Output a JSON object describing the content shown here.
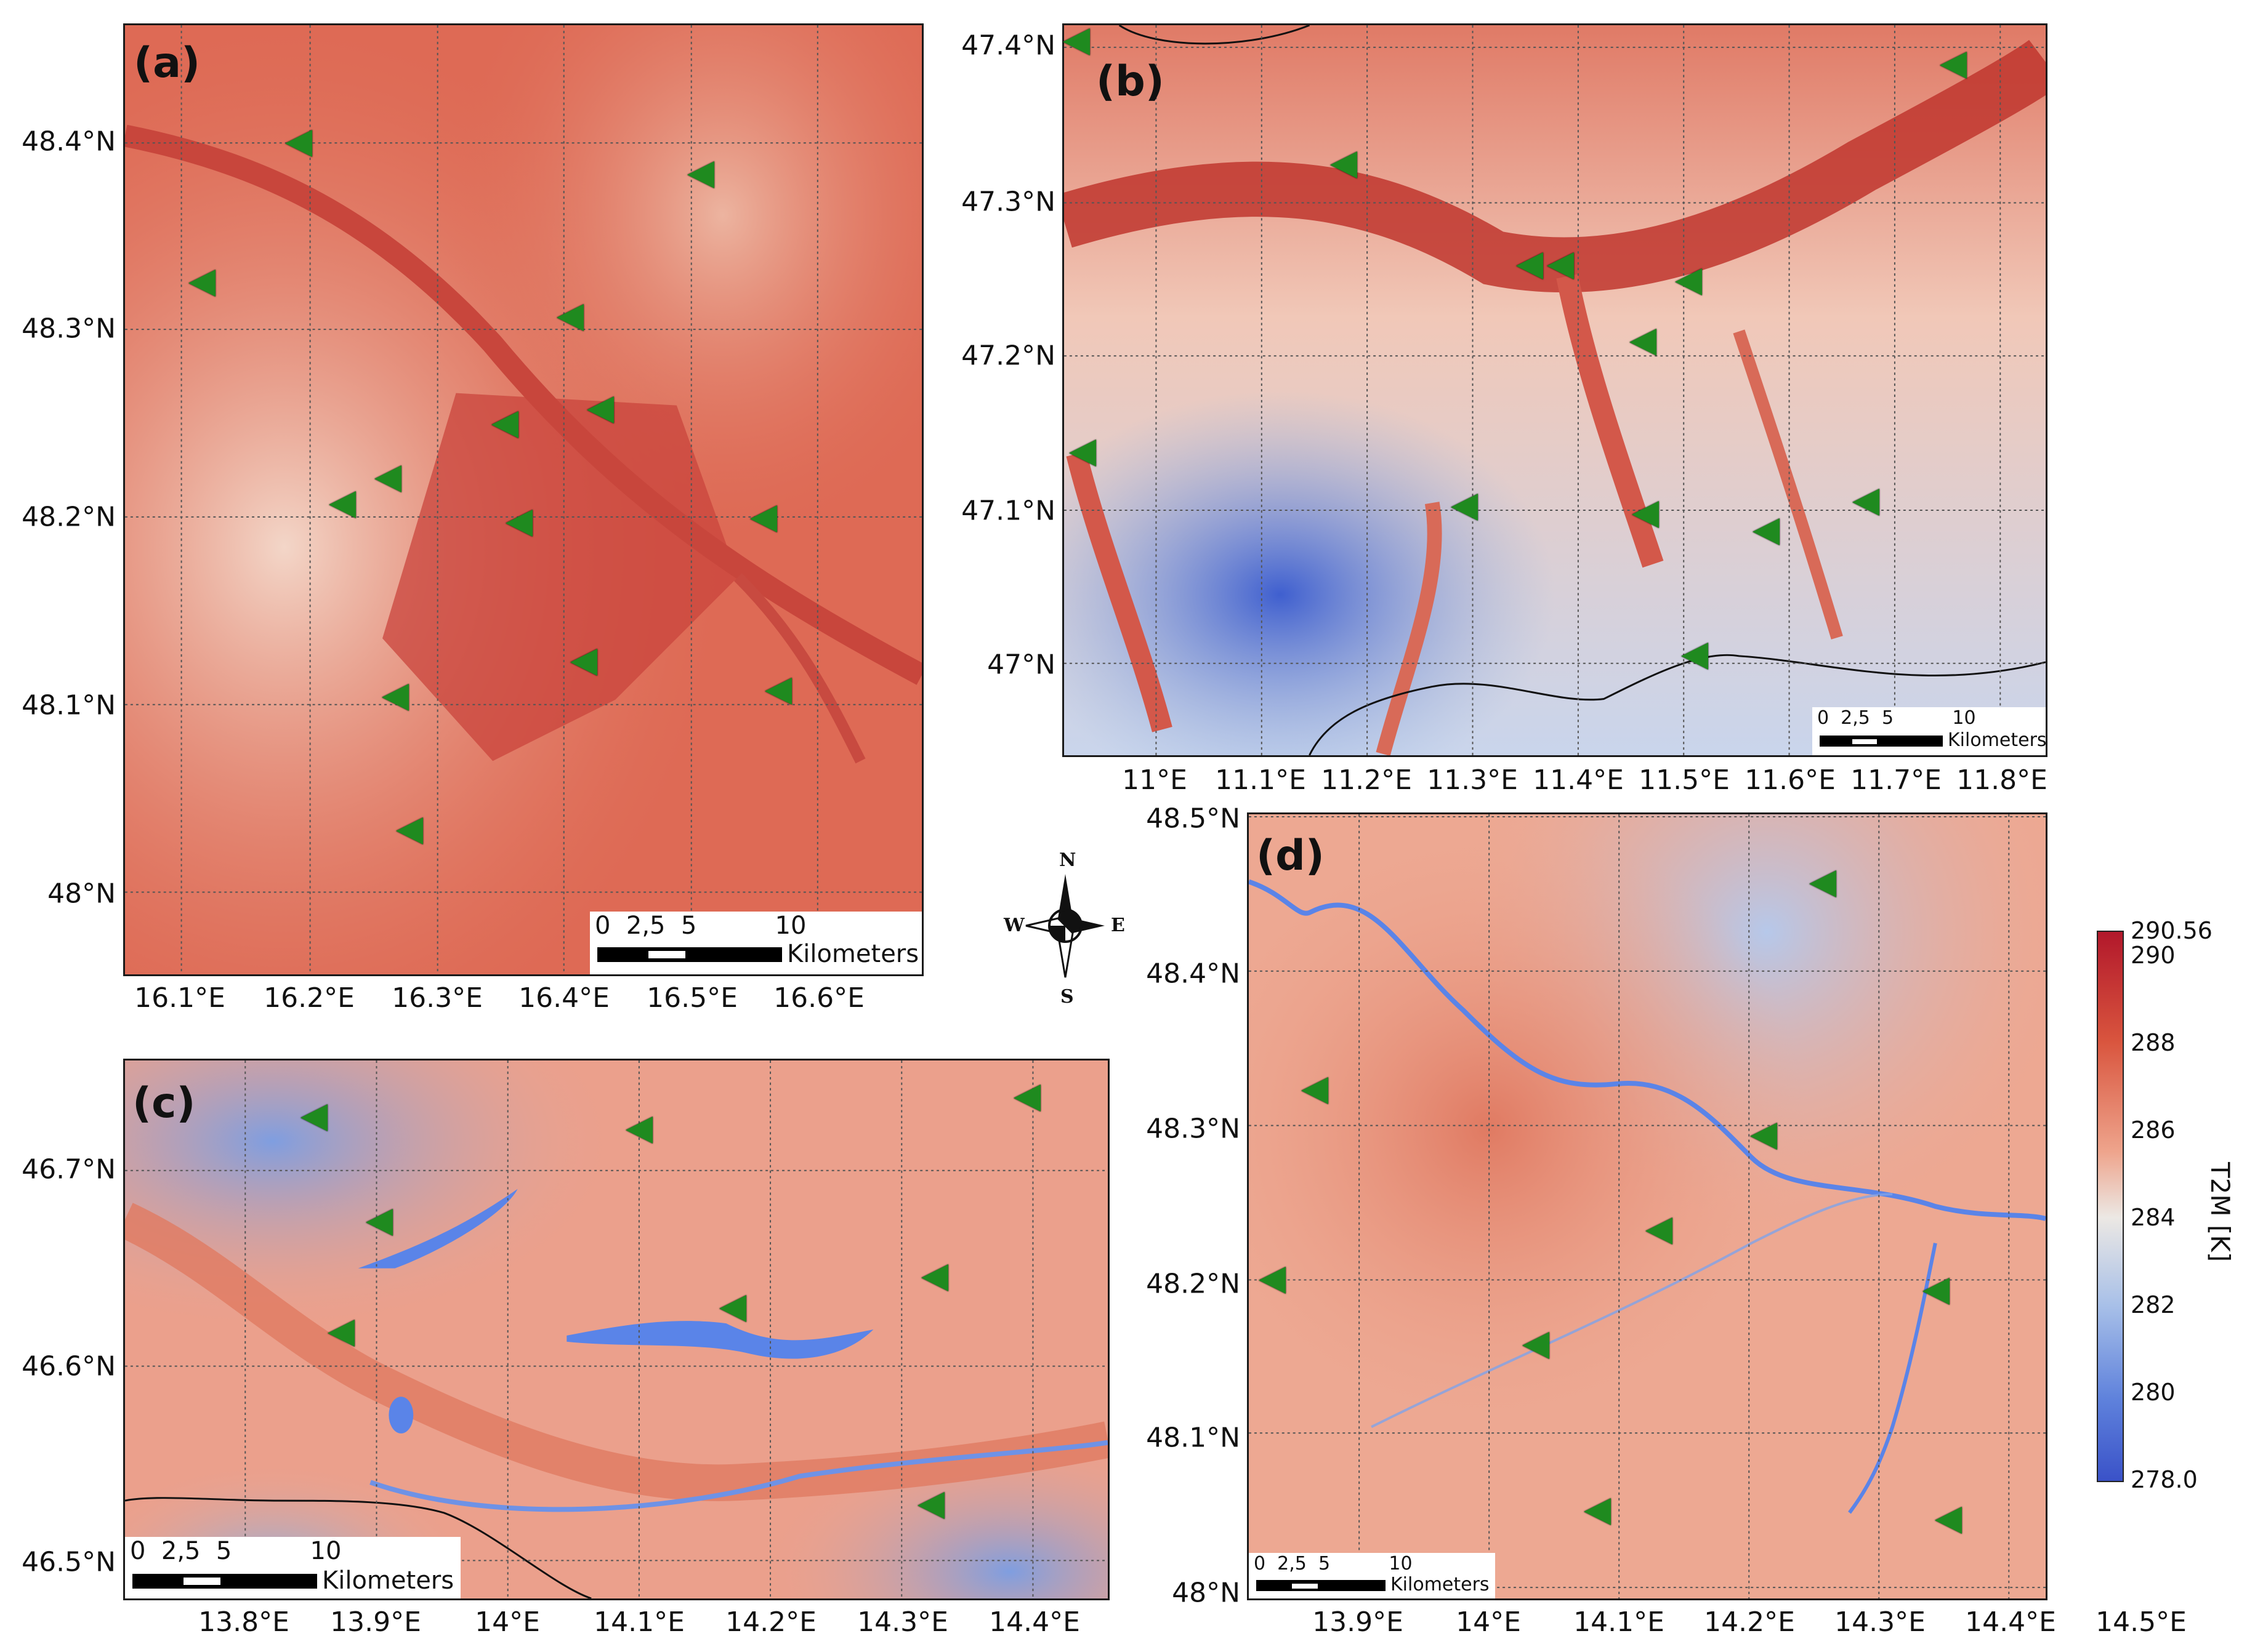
{
  "panels": {
    "a": {
      "label": "(a)",
      "x_ticks": [
        "16.1°E",
        "16.2°E",
        "16.3°E",
        "16.4°E",
        "16.5°E",
        "16.6°E"
      ],
      "y_ticks": [
        "48.4°N",
        "48.3°N",
        "48.2°N",
        "48.1°N",
        "48°N"
      ],
      "scale": {
        "numbers": "0  2,5  5          10",
        "unit": "Kilometers"
      }
    },
    "b": {
      "label": "(b)",
      "x_ticks": [
        "11°E",
        "11.1°E",
        "11.2°E",
        "11.3°E",
        "11.4°E",
        "11.5°E",
        "11.6°E",
        "11.7°E",
        "11.8°E"
      ],
      "y_ticks": [
        "47.4°N",
        "47.3°N",
        "47.2°N",
        "47.1°N",
        "47°N"
      ],
      "scale": {
        "numbers": "0  2,5  5          10",
        "unit": "Kilometers"
      }
    },
    "c": {
      "label": "(c)",
      "x_ticks": [
        "13.8°E",
        "13.9°E",
        "14°E",
        "14.1°E",
        "14.2°E",
        "14.3°E",
        "14.4°E"
      ],
      "y_ticks": [
        "46.7°N",
        "46.6°N",
        "46.5°N"
      ],
      "scale": {
        "numbers": "0  2,5  5          10",
        "unit": "Kilometers"
      }
    },
    "d": {
      "label": "(d)",
      "x_ticks": [
        "13.9°E",
        "14°E",
        "14.1°E",
        "14.2°E",
        "14.3°E",
        "14.4°E",
        "14.5°E"
      ],
      "y_ticks": [
        "48.5°N",
        "48.4°N",
        "48.3°N",
        "48.2°N",
        "48.1°N",
        "48°N"
      ],
      "scale": {
        "numbers": "0  2,5  5          10",
        "unit": "Kilometers"
      }
    }
  },
  "compass": {
    "n": "N",
    "s": "S",
    "e": "E",
    "w": "W"
  },
  "colorbar": {
    "title": "T2M [K]",
    "max_label": "290.56",
    "min_label": "278.0",
    "ticks": [
      "290",
      "288",
      "286",
      "284",
      "282",
      "280"
    ],
    "colors": {
      "high": "#b2182b",
      "mid_high": "#e8826a",
      "mid": "#ece8e4",
      "mid_low": "#8fb0e0",
      "low": "#3a52c8"
    }
  },
  "marker_color": "#1f8a1f"
}
